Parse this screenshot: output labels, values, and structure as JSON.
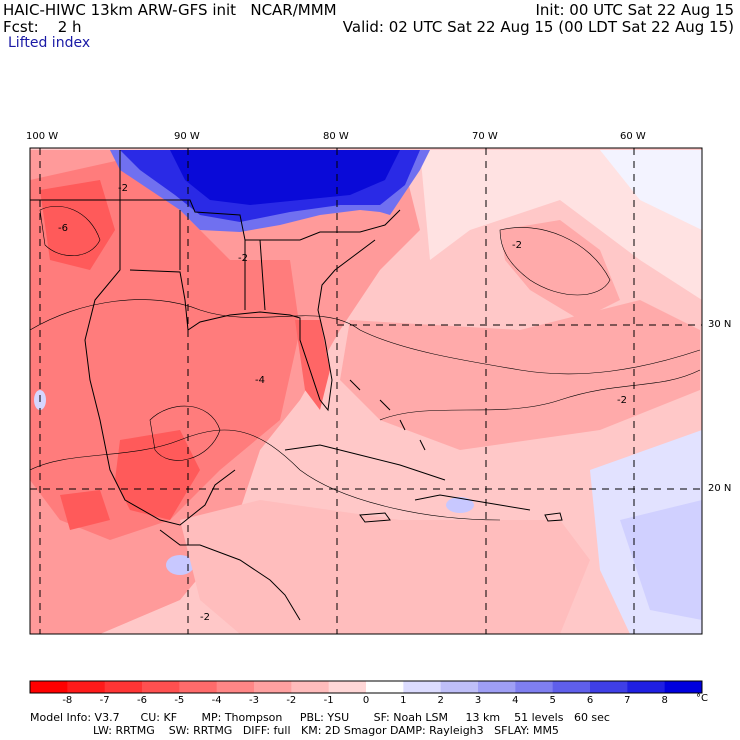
{
  "header": {
    "left_line1": "HAIC-HIWC 13km ARW-GFS init   NCAR/MMM",
    "left_line2": "Fcst:    2 h",
    "right_line1": "Init: 00 UTC Sat 22 Aug 15",
    "right_line2": "Valid: 02 UTC Sat 22 Aug 15 (00 LDT Sat 22 Aug 15)",
    "field": "Lifted index"
  },
  "map": {
    "lon_labels": [
      "100 W",
      "90 W",
      "80 W",
      "70 W",
      "60 W"
    ],
    "lat_labels": [
      "30 N",
      "20 N"
    ],
    "contour_labels": [
      "-2",
      "-4",
      "-6"
    ]
  },
  "colorbar": {
    "labels": [
      "-8",
      "-7",
      "-6",
      "-5",
      "-4",
      "-3",
      "-2",
      "-1",
      "0",
      "1",
      "2",
      "3",
      "4",
      "5",
      "6",
      "7",
      "8"
    ],
    "unit": "°C",
    "colors": [
      "#ff1a1a",
      "#ff3535",
      "#ff5050",
      "#ff6b6b",
      "#ff8686",
      "#ffa1a1",
      "#ffbcbc",
      "#ffd7d7",
      "#ffffff",
      "#dcdcff",
      "#bfbff8",
      "#9f9ff5",
      "#7f7ff0",
      "#5f5feb",
      "#3f3fe6",
      "#1f1fe2",
      "#0000de"
    ]
  },
  "model_info": {
    "line1": "Model Info: V3.7      CU: KF       MP: Thompson     PBL: YSU       SF: Noah LSM     13 km    51 levels   60 sec",
    "line2": "                  LW: RRTMG    SW: RRTMG   DIFF: full   KM: 2D Smagor DAMP: Rayleigh3   SFLAY: MM5"
  }
}
